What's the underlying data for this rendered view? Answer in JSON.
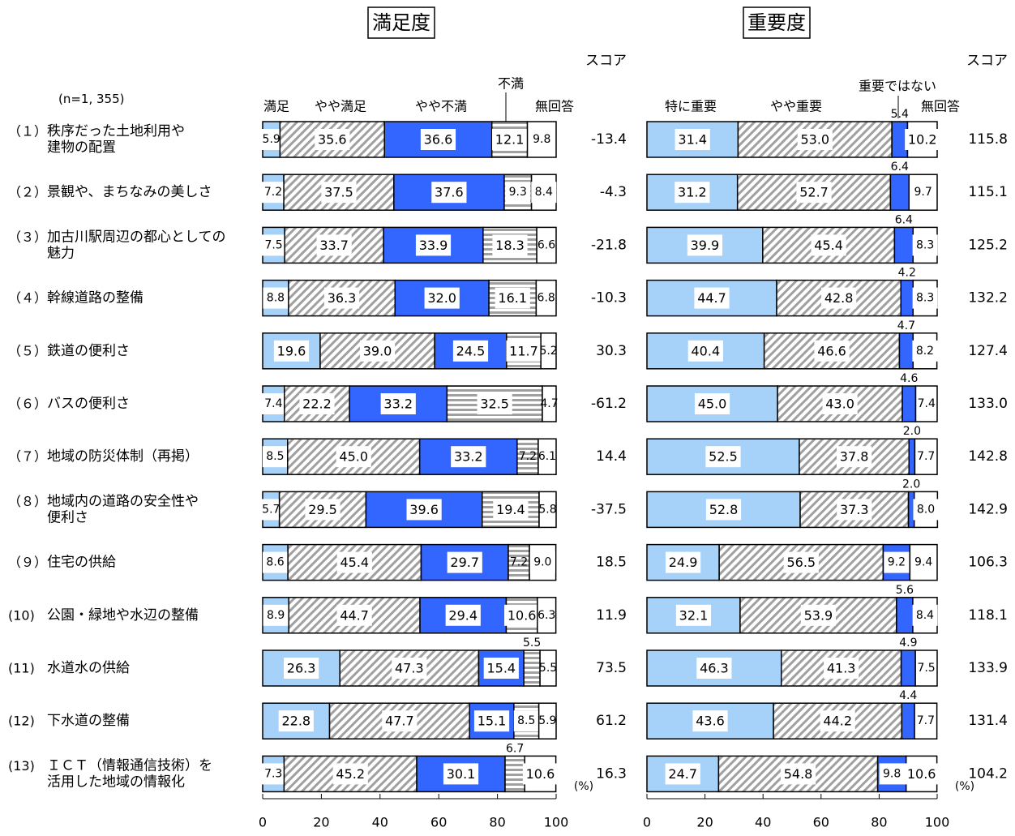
{
  "chart_data": {
    "type": "bar",
    "subtype": "stacked-horizontal-100",
    "n_label": "(n=1, 355)",
    "unit_label": "(%)",
    "x_ticks": [
      "0",
      "20",
      "40",
      "60",
      "80",
      "100"
    ],
    "xlim": [
      0,
      100
    ],
    "colors": {
      "light_blue": "#a6d2fa",
      "dark_blue": "#3366ff",
      "hatch": "#a0a0a0",
      "stripe": "#a0a0a0",
      "white": "#ffffff"
    },
    "categories": [
      {
        "num": "（１）",
        "lines": [
          "秩序だった土地利用や",
          "建物の配置"
        ]
      },
      {
        "num": "（２）",
        "lines": [
          "景観や、まちなみの美しさ"
        ]
      },
      {
        "num": "（３）",
        "lines": [
          "加古川駅周辺の都心としての",
          "魅力"
        ]
      },
      {
        "num": "（４）",
        "lines": [
          "幹線道路の整備"
        ]
      },
      {
        "num": "（５）",
        "lines": [
          "鉄道の便利さ"
        ]
      },
      {
        "num": "（６）",
        "lines": [
          "バスの便利さ"
        ]
      },
      {
        "num": "（７）",
        "lines": [
          "地域の防災体制（再掲）"
        ]
      },
      {
        "num": "（８）",
        "lines": [
          "地域内の道路の安全性や",
          "便利さ"
        ]
      },
      {
        "num": "（９）",
        "lines": [
          "住宅の供給"
        ]
      },
      {
        "num": "(10)",
        "lines": [
          "公園・緑地や水辺の整備"
        ]
      },
      {
        "num": "(11)",
        "lines": [
          "水道水の供給"
        ]
      },
      {
        "num": "(12)",
        "lines": [
          "下水道の整備"
        ]
      },
      {
        "num": "(13)",
        "lines": [
          "ＩＣＴ（情報通信技術）を",
          "活用した地域の情報化"
        ]
      }
    ],
    "panels": [
      {
        "title": "満足度",
        "score_header": "スコア",
        "series": [
          {
            "name": "満足",
            "color": "light_blue"
          },
          {
            "name": "やや満足",
            "color": "hatch"
          },
          {
            "name": "やや不満",
            "color": "dark_blue"
          },
          {
            "name": "不満",
            "color": "stripe"
          },
          {
            "name": "無回答",
            "color": "white"
          }
        ],
        "values": [
          [
            5.9,
            35.6,
            36.6,
            12.1,
            9.8
          ],
          [
            7.2,
            37.5,
            37.6,
            9.3,
            8.4
          ],
          [
            7.5,
            33.7,
            33.9,
            18.3,
            6.6
          ],
          [
            8.8,
            36.3,
            32.0,
            16.1,
            6.8
          ],
          [
            19.6,
            39.0,
            24.5,
            11.7,
            5.2
          ],
          [
            7.4,
            22.2,
            33.2,
            32.5,
            4.7
          ],
          [
            8.5,
            45.0,
            33.2,
            7.2,
            6.1
          ],
          [
            5.7,
            29.5,
            39.6,
            19.4,
            5.8
          ],
          [
            8.6,
            45.4,
            29.7,
            7.2,
            9.0
          ],
          [
            8.9,
            44.7,
            29.4,
            10.6,
            6.3
          ],
          [
            26.3,
            47.3,
            15.4,
            5.5,
            5.5
          ],
          [
            22.8,
            47.7,
            15.1,
            8.5,
            5.9
          ],
          [
            7.3,
            45.2,
            30.1,
            6.7,
            10.6
          ]
        ],
        "labels": [
          [
            "5.9",
            "35.6",
            "36.6",
            "12.1",
            "9.8"
          ],
          [
            "7.2",
            "37.5",
            "37.6",
            "9.3",
            "8.4"
          ],
          [
            "7.5",
            "33.7",
            "33.9",
            "18.3",
            "6.6"
          ],
          [
            "8.8",
            "36.3",
            "32.0",
            "16.1",
            "6.8"
          ],
          [
            "19.6",
            "39.0",
            "24.5",
            "11.7",
            "5.2"
          ],
          [
            "7.4",
            "22.2",
            "33.2",
            "32.5",
            "4.7"
          ],
          [
            "8.5",
            "45.0",
            "33.2",
            "7.2",
            "6.1"
          ],
          [
            "5.7",
            "29.5",
            "39.6",
            "19.4",
            "5.8"
          ],
          [
            "8.6",
            "45.4",
            "29.7",
            "7.2",
            "9.0"
          ],
          [
            "8.9",
            "44.7",
            "29.4",
            "10.6",
            "6.3"
          ],
          [
            "26.3",
            "47.3",
            "15.4",
            "5.5",
            "5.5"
          ],
          [
            "22.8",
            "47.7",
            "15.1",
            "8.5",
            "5.9"
          ],
          [
            "7.3",
            "45.2",
            "30.1",
            "6.7",
            "10.6"
          ]
        ],
        "outside_label_rows": [
          10,
          12
        ],
        "outside_label_segment": 3,
        "scores": [
          "-13.4",
          "-4.3",
          "-21.8",
          "-10.3",
          "30.3",
          "-61.2",
          "14.4",
          "-37.5",
          "18.5",
          "11.9",
          "73.5",
          "61.2",
          "16.3"
        ]
      },
      {
        "title": "重要度",
        "score_header": "スコア",
        "series": [
          {
            "name": "特に重要",
            "color": "light_blue"
          },
          {
            "name": "やや重要",
            "color": "hatch"
          },
          {
            "name": "重要ではない",
            "color": "dark_blue"
          },
          {
            "name": "無回答",
            "color": "white"
          }
        ],
        "values": [
          [
            31.4,
            53.0,
            5.4,
            10.2
          ],
          [
            31.2,
            52.7,
            6.4,
            9.7
          ],
          [
            39.9,
            45.4,
            6.4,
            8.3
          ],
          [
            44.7,
            42.8,
            4.2,
            8.3
          ],
          [
            40.4,
            46.6,
            4.7,
            8.2
          ],
          [
            45.0,
            43.0,
            4.6,
            7.4
          ],
          [
            52.5,
            37.8,
            2.0,
            7.7
          ],
          [
            52.8,
            37.3,
            2.0,
            8.0
          ],
          [
            24.9,
            56.5,
            9.2,
            9.4
          ],
          [
            32.1,
            53.9,
            5.6,
            8.4
          ],
          [
            46.3,
            41.3,
            4.9,
            7.5
          ],
          [
            43.6,
            44.2,
            4.4,
            7.7
          ],
          [
            24.7,
            54.8,
            9.8,
            10.6
          ]
        ],
        "labels": [
          [
            "31.4",
            "53.0",
            "5.4",
            "10.2"
          ],
          [
            "31.2",
            "52.7",
            "6.4",
            "9.7"
          ],
          [
            "39.9",
            "45.4",
            "6.4",
            "8.3"
          ],
          [
            "44.7",
            "42.8",
            "4.2",
            "8.3"
          ],
          [
            "40.4",
            "46.6",
            "4.7",
            "8.2"
          ],
          [
            "45.0",
            "43.0",
            "4.6",
            "7.4"
          ],
          [
            "52.5",
            "37.8",
            "2.0",
            "7.7"
          ],
          [
            "52.8",
            "37.3",
            "2.0",
            "8.0"
          ],
          [
            "24.9",
            "56.5",
            "9.2",
            "9.4"
          ],
          [
            "32.1",
            "53.9",
            "5.6",
            "8.4"
          ],
          [
            "46.3",
            "41.3",
            "4.9",
            "7.5"
          ],
          [
            "43.6",
            "44.2",
            "4.4",
            "7.7"
          ],
          [
            "24.7",
            "54.8",
            "9.8",
            "10.6"
          ]
        ],
        "outside_label_rows": [
          0,
          1,
          2,
          3,
          4,
          5,
          6,
          7,
          9,
          10,
          11
        ],
        "outside_label_segment": 2,
        "scores": [
          "115.8",
          "115.1",
          "125.2",
          "132.2",
          "127.4",
          "133.0",
          "142.8",
          "142.9",
          "106.3",
          "118.1",
          "133.9",
          "131.4",
          "104.2"
        ]
      }
    ]
  }
}
